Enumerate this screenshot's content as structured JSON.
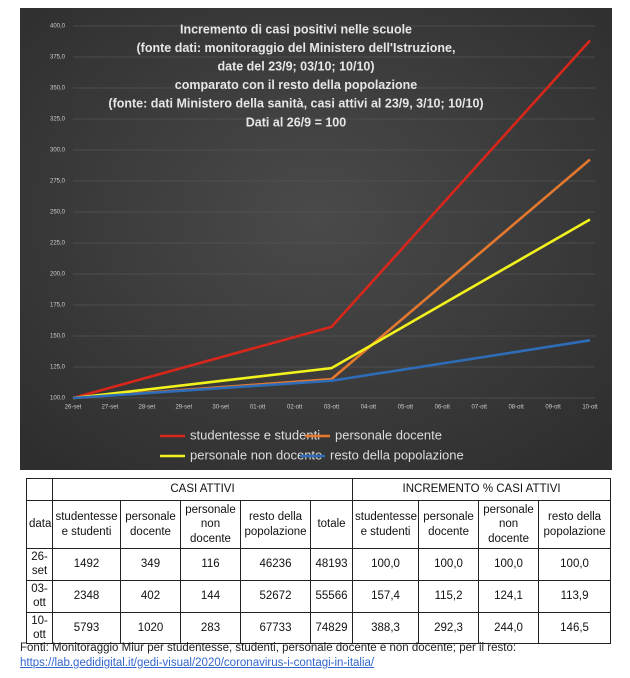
{
  "chart_data": {
    "type": "line",
    "title": [
      "Incremento di casi positivi nelle scuole",
      "(fonte dati: monitoraggio del Ministero dell'Istruzione,",
      "date del 23/9; 03/10; 10/10)",
      "comparato con il resto della popolazione",
      "(fonte: dati Ministero della sanità, casi attivi al 23/9, 3/10; 10/10)",
      "Dati al 26/9 = 100"
    ],
    "xticks": [
      "26-set",
      "27-set",
      "28-set",
      "29-set",
      "30-set",
      "01-ott",
      "02-ott",
      "03-ott",
      "04-ott",
      "05-ott",
      "06-ott",
      "07-ott",
      "08-ott",
      "09-ott",
      "10-ott"
    ],
    "x": [
      "26-set",
      "03-ott",
      "10-ott"
    ],
    "series": [
      {
        "name": "studentesse e studenti",
        "color": "#d8261b",
        "values": [
          100.0,
          157.4,
          388.3
        ]
      },
      {
        "name": "personale docente",
        "color": "#e3782e",
        "values": [
          100.0,
          115.2,
          292.3
        ]
      },
      {
        "name": "personale non docente",
        "color": "#f2f21c",
        "values": [
          100.0,
          124.1,
          244.0
        ]
      },
      {
        "name": "resto della popolazione",
        "color": "#2f6cb8",
        "values": [
          100.0,
          113.9,
          146.5
        ]
      }
    ],
    "ylim": [
      100,
      400
    ],
    "yticks": [
      {
        "value": 100,
        "label": "100,0"
      },
      {
        "value": 125,
        "label": "125,0"
      },
      {
        "value": 150,
        "label": "150,0"
      },
      {
        "value": 175,
        "label": "175,0"
      },
      {
        "value": 200,
        "label": "200,0"
      },
      {
        "value": 225,
        "label": "225,0"
      },
      {
        "value": 250,
        "label": "250,0"
      },
      {
        "value": 275,
        "label": "275,0"
      },
      {
        "value": 300,
        "label": "300,0"
      },
      {
        "value": 325,
        "label": "325,0"
      },
      {
        "value": 350,
        "label": "350,0"
      },
      {
        "value": 375,
        "label": "375,0"
      },
      {
        "value": 400,
        "label": "400,0"
      }
    ],
    "grid": true
  },
  "table": {
    "groups": [
      "CASI ATTIVI",
      "INCREMENTO % CASI ATTIVI"
    ],
    "columns": [
      "data",
      "studentesse e studenti",
      "personale docente",
      "personale non docente",
      "resto della popolazione",
      "totale",
      "studentesse e studenti",
      "personale docente",
      "personale non docente",
      "resto della popolazione"
    ],
    "rows": [
      [
        "26-set",
        "1492",
        "349",
        "116",
        "46236",
        "48193",
        "100,0",
        "100,0",
        "100,0",
        "100,0"
      ],
      [
        "03-ott",
        "2348",
        "402",
        "144",
        "52672",
        "55566",
        "157,4",
        "115,2",
        "124,1",
        "113,9"
      ],
      [
        "10-ott",
        "5793",
        "1020",
        "283",
        "67733",
        "74829",
        "388,3",
        "292,3",
        "244,0",
        "146,5"
      ]
    ]
  },
  "footer": {
    "text": "Fonti: Monitoraggio Miur per studentesse, studenti, personale docente e non docente; per il resto:",
    "link": "https://lab.gedidigital.it/gedi-visual/2020/coronavirus-i-contagi-in-italia/"
  }
}
